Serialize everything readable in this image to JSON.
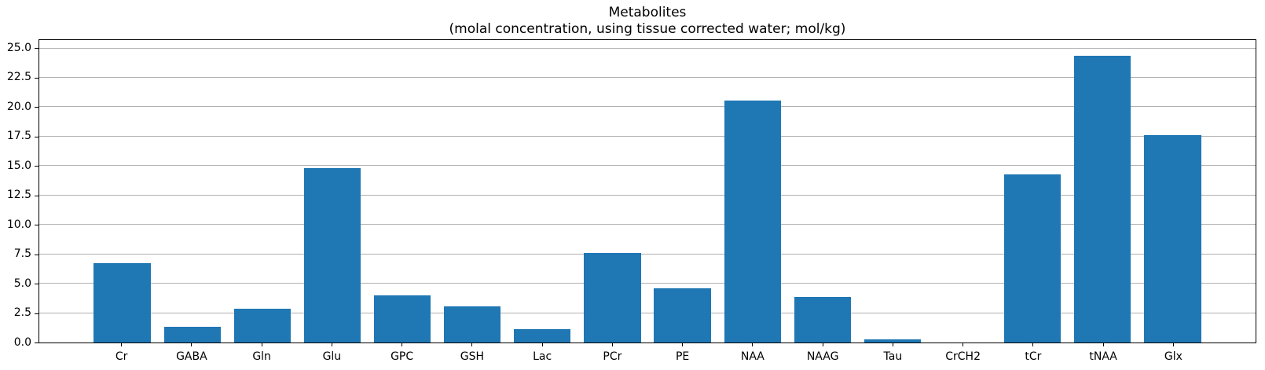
{
  "title": "Metabolites",
  "subtitle": "(molal concentration, using tissue corrected water; mol/kg)",
  "chart_data": {
    "type": "bar",
    "title": "Metabolites",
    "subtitle": "(molal concentration, using tissue corrected water; mol/kg)",
    "categories": [
      "Cr",
      "GABA",
      "Gln",
      "Glu",
      "GPC",
      "GSH",
      "Lac",
      "PCr",
      "PE",
      "NAA",
      "NAAG",
      "Tau",
      "CrCH2",
      "tCr",
      "tNAA",
      "Glx"
    ],
    "values": [
      6.75,
      1.35,
      2.85,
      14.85,
      4.0,
      3.05,
      1.15,
      7.6,
      4.6,
      20.55,
      3.9,
      0.25,
      0.0,
      14.3,
      24.35,
      17.65
    ],
    "xlabel": "",
    "ylabel": "",
    "ylim": [
      0,
      25.7
    ],
    "yticks": [
      0.0,
      2.5,
      5.0,
      7.5,
      10.0,
      12.5,
      15.0,
      17.5,
      20.0,
      22.5,
      25.0
    ],
    "ytick_labels": [
      "0.0",
      "2.5",
      "5.0",
      "7.5",
      "10.0",
      "12.5",
      "15.0",
      "17.5",
      "20.0",
      "22.5",
      "25.0"
    ],
    "grid": true,
    "legend": false,
    "bar_color": "#1f77b4",
    "gridline_color": "#b0b0b0",
    "spine_color": "#000000"
  }
}
